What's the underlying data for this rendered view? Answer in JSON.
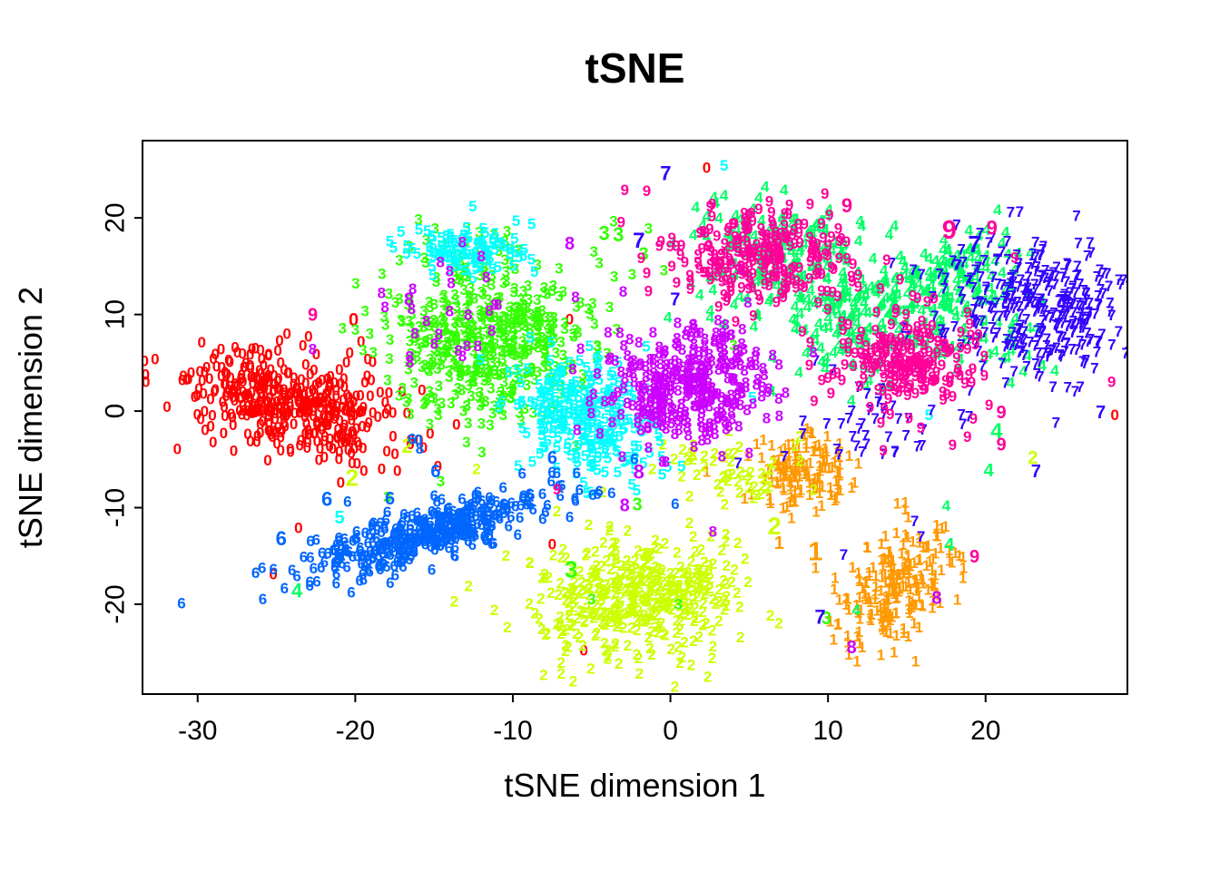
{
  "chart_data": {
    "type": "scatter",
    "title": "tSNE",
    "xlabel": "tSNE dimension 1",
    "ylabel": "tSNE dimension 2",
    "xlim": [
      -33.5,
      29
    ],
    "ylim": [
      -29.3,
      28
    ],
    "xticks": [
      -30,
      -20,
      -10,
      0,
      10,
      20
    ],
    "yticks": [
      -20,
      -10,
      0,
      10,
      20
    ],
    "grid": false,
    "legend": "none",
    "marker_style": "digit glyphs plotted at embedding coordinates, colored by digit class (rainbow palette)",
    "axis_color": "#000000",
    "background": "#FFFFFF",
    "classes": [
      {
        "digit": "0",
        "color": "#FF0000",
        "clusters": [
          {
            "cx": -24.2,
            "cy": 0.8,
            "sx": 3.2,
            "sy": 2.7,
            "rho": -0.35,
            "n": 420
          }
        ],
        "outliers": [
          [
            -20.1,
            9.4,
            1.2
          ],
          [
            -6.4,
            9.5,
            1
          ],
          [
            -23.6,
            -12.1,
            1
          ],
          [
            -25.2,
            -16.9,
            1
          ],
          [
            -7.5,
            -13.8,
            1
          ],
          [
            -5.5,
            -24.8,
            1
          ],
          [
            2.3,
            25.2,
            1
          ],
          [
            28.2,
            -0.4,
            1
          ],
          [
            -16.5,
            -3.4,
            1
          ],
          [
            -17.6,
            -2.6,
            1
          ]
        ]
      },
      {
        "digit": "1",
        "color": "#FF9900",
        "clusters": [
          {
            "cx": 8.5,
            "cy": -5.8,
            "sx": 1.7,
            "sy": 2.1,
            "rho": 0,
            "n": 130
          },
          {
            "cx": 14.4,
            "cy": -18.0,
            "sx": 1.9,
            "sy": 3.1,
            "rho": 0.35,
            "n": 210
          }
        ],
        "outliers": [
          [
            6.9,
            -13.7,
            1.2
          ],
          [
            9.2,
            -14.6,
            1.7
          ],
          [
            14.9,
            -9.5,
            1
          ],
          [
            2.3,
            -6.3,
            1
          ],
          [
            6.3,
            -9.2,
            1.2
          ]
        ]
      },
      {
        "digit": "2",
        "color": "#CCFF00",
        "clusters": [
          {
            "cx": -2.0,
            "cy": -19.3,
            "sx": 3.3,
            "sy": 3.1,
            "rho": 0.1,
            "n": 400
          },
          {
            "cx": 4.3,
            "cy": -6.3,
            "sx": 2.4,
            "sy": 1.6,
            "rho": -0.4,
            "n": 50
          }
        ],
        "outliers": [
          [
            -16.7,
            -3.6,
            1.3
          ],
          [
            -12.3,
            -6.0,
            1
          ],
          [
            6.6,
            -11.9,
            1.6
          ],
          [
            23.0,
            -4.9,
            1.2
          ],
          [
            8.2,
            -2.6,
            1
          ],
          [
            1.4,
            -4.4,
            1.3
          ],
          [
            -4.3,
            -8.4,
            1
          ],
          [
            -20.2,
            -6.9,
            1.5
          ]
        ]
      },
      {
        "digit": "3",
        "color": "#33FF00",
        "clusters": [
          {
            "cx": -11.6,
            "cy": 7.4,
            "sx": 3.3,
            "sy": 4.0,
            "rho": 0.15,
            "n": 460
          },
          {
            "cx": -12.5,
            "cy": 16.5,
            "sx": 2.2,
            "sy": 1.4,
            "rho": 0,
            "n": 22
          }
        ],
        "outliers": [
          [
            -1.4,
            18.9,
            1
          ],
          [
            -1.7,
            16.2,
            1.2
          ],
          [
            -4.2,
            18.4,
            1.3
          ],
          [
            -3.3,
            18.3,
            1.3
          ],
          [
            -6.3,
            -16.4,
            1.5
          ],
          [
            -2.1,
            -9.7,
            1.2
          ],
          [
            -5.0,
            -19.5,
            1
          ],
          [
            0.5,
            -20.0,
            1
          ],
          [
            9.9,
            -21.5,
            1.2
          ],
          [
            4.0,
            6.8,
            1
          ]
        ]
      },
      {
        "digit": "4",
        "color": "#00FF66",
        "clusters": [
          {
            "cx": 6.8,
            "cy": 16.2,
            "sx": 2.8,
            "sy": 2.8,
            "rho": 0,
            "n": 170
          },
          {
            "cx": 12.8,
            "cy": 9.2,
            "sx": 3.4,
            "sy": 3.0,
            "rho": 0,
            "n": 210
          },
          {
            "cx": 18.0,
            "cy": 13.5,
            "sx": 2.4,
            "sy": 2.4,
            "rho": 0,
            "n": 120
          },
          {
            "cx": 21.5,
            "cy": 7.0,
            "sx": 1.6,
            "sy": 2.2,
            "rho": 0,
            "n": 18
          }
        ],
        "outliers": [
          [
            -23.7,
            -18.6,
            1.3
          ],
          [
            20.7,
            -2.1,
            1.4
          ],
          [
            20.2,
            -6.2,
            1.2
          ],
          [
            17.5,
            -9.8,
            1
          ],
          [
            17.7,
            -13.9,
            1.2
          ],
          [
            7.2,
            22.9,
            1
          ],
          [
            3.4,
            22.3,
            1
          ],
          [
            1.6,
            21.1,
            1
          ],
          [
            6.0,
            23.2,
            1
          ],
          [
            11.8,
            -20.6,
            1
          ]
        ]
      },
      {
        "digit": "5",
        "color": "#00FFFF",
        "clusters": [
          {
            "cx": -5.3,
            "cy": -0.8,
            "sx": 2.1,
            "sy": 3.0,
            "rho": -0.2,
            "n": 270
          },
          {
            "cx": -12.9,
            "cy": 16.8,
            "sx": 1.8,
            "sy": 1.3,
            "rho": 0,
            "n": 110
          }
        ],
        "outliers": [
          [
            3.4,
            25.4,
            1
          ],
          [
            -21.0,
            -11.1,
            1.2
          ],
          [
            -5.3,
            -8.5,
            1
          ],
          [
            16.4,
            -0.4,
            1
          ],
          [
            -8.9,
            7.6,
            1
          ],
          [
            5.2,
            1.4,
            1
          ]
        ]
      },
      {
        "digit": "6",
        "color": "#0066FF",
        "clusters": [
          {
            "cx": -15.3,
            "cy": -12.6,
            "sx": 4.0,
            "sy": 2.3,
            "rho": 0.8,
            "n": 400
          }
        ],
        "outliers": [
          [
            -24.7,
            -13.2,
            1.3
          ],
          [
            -21.8,
            -9.1,
            1.3
          ],
          [
            -17.8,
            -9.1,
            1.2
          ],
          [
            -14.9,
            -6.3,
            1.2
          ],
          [
            -7.5,
            -4.9,
            1.2
          ],
          [
            -6.9,
            -7.7,
            1
          ],
          [
            0.3,
            -9.6,
            1
          ],
          [
            -16.4,
            -2.9,
            1
          ],
          [
            -15.9,
            -3.9,
            1,
            "8"
          ],
          [
            -16.0,
            -3.0,
            1,
            "0"
          ]
        ]
      },
      {
        "digit": "7",
        "color": "#3300FF",
        "clusters": [
          {
            "cx": 23.4,
            "cy": 10.6,
            "sx": 2.9,
            "sy": 3.4,
            "rho": -0.1,
            "n": 330
          },
          {
            "cx": 12.6,
            "cy": -1.8,
            "sx": 3.0,
            "sy": 1.9,
            "rho": 0,
            "n": 40
          }
        ],
        "outliers": [
          [
            -0.3,
            24.6,
            1.3
          ],
          [
            -2.0,
            17.6,
            1.4
          ],
          [
            0.3,
            11.5,
            1.2
          ],
          [
            15.5,
            -11.4,
            1
          ],
          [
            15.9,
            -13.0,
            1
          ],
          [
            11.0,
            -14.9,
            1
          ],
          [
            9.5,
            -21.3,
            1.3
          ],
          [
            23.2,
            -6.3,
            1.2
          ],
          [
            27.3,
            -0.2,
            1.2
          ],
          [
            9.2,
            5.2,
            1
          ],
          [
            10.3,
            4.3,
            1
          ],
          [
            4.3,
            -5.4,
            1
          ],
          [
            19.3,
            17.3,
            1.5
          ]
        ]
      },
      {
        "digit": "8",
        "color": "#CC00FF",
        "clusters": [
          {
            "cx": 0.9,
            "cy": 2.8,
            "sx": 2.7,
            "sy": 3.2,
            "rho": 0.1,
            "n": 350
          },
          {
            "cx": -11.8,
            "cy": 8.0,
            "sx": 3.0,
            "sy": 3.0,
            "rho": 0,
            "n": 26
          }
        ],
        "outliers": [
          [
            -16.6,
            11.5,
            1.2
          ],
          [
            -13.2,
            17.5,
            1
          ],
          [
            -12.0,
            16.0,
            1
          ],
          [
            -14.6,
            15.4,
            1
          ],
          [
            -6.4,
            17.3,
            1.2
          ],
          [
            -2.0,
            -6.3,
            1.3
          ],
          [
            -2.9,
            -9.8,
            1.2
          ],
          [
            11.5,
            -24.5,
            1.2
          ],
          [
            16.9,
            -19.4,
            1.2
          ],
          [
            6.9,
            -0.5,
            1
          ],
          [
            -22.7,
            6.4,
            1
          ],
          [
            2.7,
            -12.5,
            1
          ]
        ]
      },
      {
        "digit": "9",
        "color": "#FF0099",
        "clusters": [
          {
            "cx": 5.9,
            "cy": 16.4,
            "sx": 2.4,
            "sy": 2.3,
            "rho": 0,
            "n": 220
          },
          {
            "cx": 15.0,
            "cy": 4.9,
            "sx": 2.4,
            "sy": 2.5,
            "rho": 0,
            "n": 220
          },
          {
            "cx": 9.0,
            "cy": 13.0,
            "sx": 4.0,
            "sy": 3.0,
            "rho": 0,
            "n": 36
          }
        ],
        "outliers": [
          [
            -2.9,
            22.9,
            1
          ],
          [
            -1.5,
            22.8,
            1
          ],
          [
            -0.7,
            17.1,
            1
          ],
          [
            -1.5,
            14.3,
            1
          ],
          [
            -22.7,
            9.9,
            1.2
          ],
          [
            9.8,
            22.5,
            1
          ],
          [
            11.2,
            21.3,
            1.3
          ],
          [
            20.4,
            19.0,
            1.3
          ],
          [
            17.7,
            18.7,
            1.7
          ],
          [
            21.0,
            -0.2,
            1.2
          ],
          [
            21.0,
            -3.5,
            1.2
          ],
          [
            19.3,
            -15.1,
            1.2
          ],
          [
            -7.2,
            -8.1,
            1
          ],
          [
            5.6,
            20.9,
            1
          ],
          [
            28.0,
            3.0,
            1
          ]
        ]
      }
    ]
  }
}
